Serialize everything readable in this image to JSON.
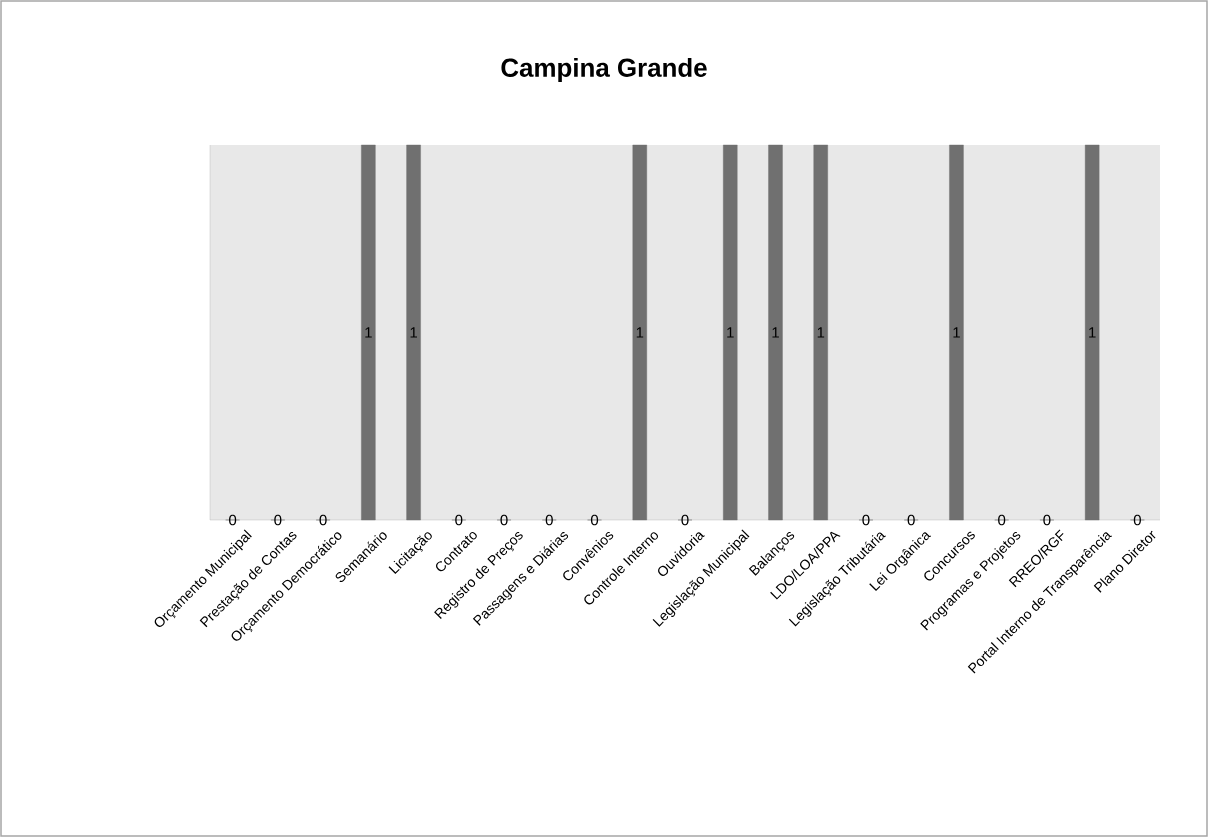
{
  "chart_data": {
    "type": "bar",
    "title": "Campina Grande",
    "categories": [
      "Orçamento Municipal",
      "Prestação de Contas",
      "Orçamento Democrático",
      "Semanário",
      "Licitação",
      "Contrato",
      "Registro de Preços",
      "Passagens e Diárias",
      "Convênios",
      "Controle Interno",
      "Ouvidoria",
      "Legislação Municipal",
      "Balanços",
      "LDO/LOA/PPA",
      "Legislação Tributária",
      "Lei Orgânica",
      "Concursos",
      "Programas e Projetos",
      "RREO/RGF",
      "Portal Interno de Transparência",
      "Plano Diretor"
    ],
    "values": [
      0,
      0,
      0,
      1,
      1,
      0,
      0,
      0,
      0,
      1,
      0,
      1,
      1,
      1,
      0,
      0,
      1,
      0,
      0,
      1,
      0
    ],
    "color": "#707070",
    "ylim": [
      0,
      1
    ],
    "data_labels": true
  }
}
